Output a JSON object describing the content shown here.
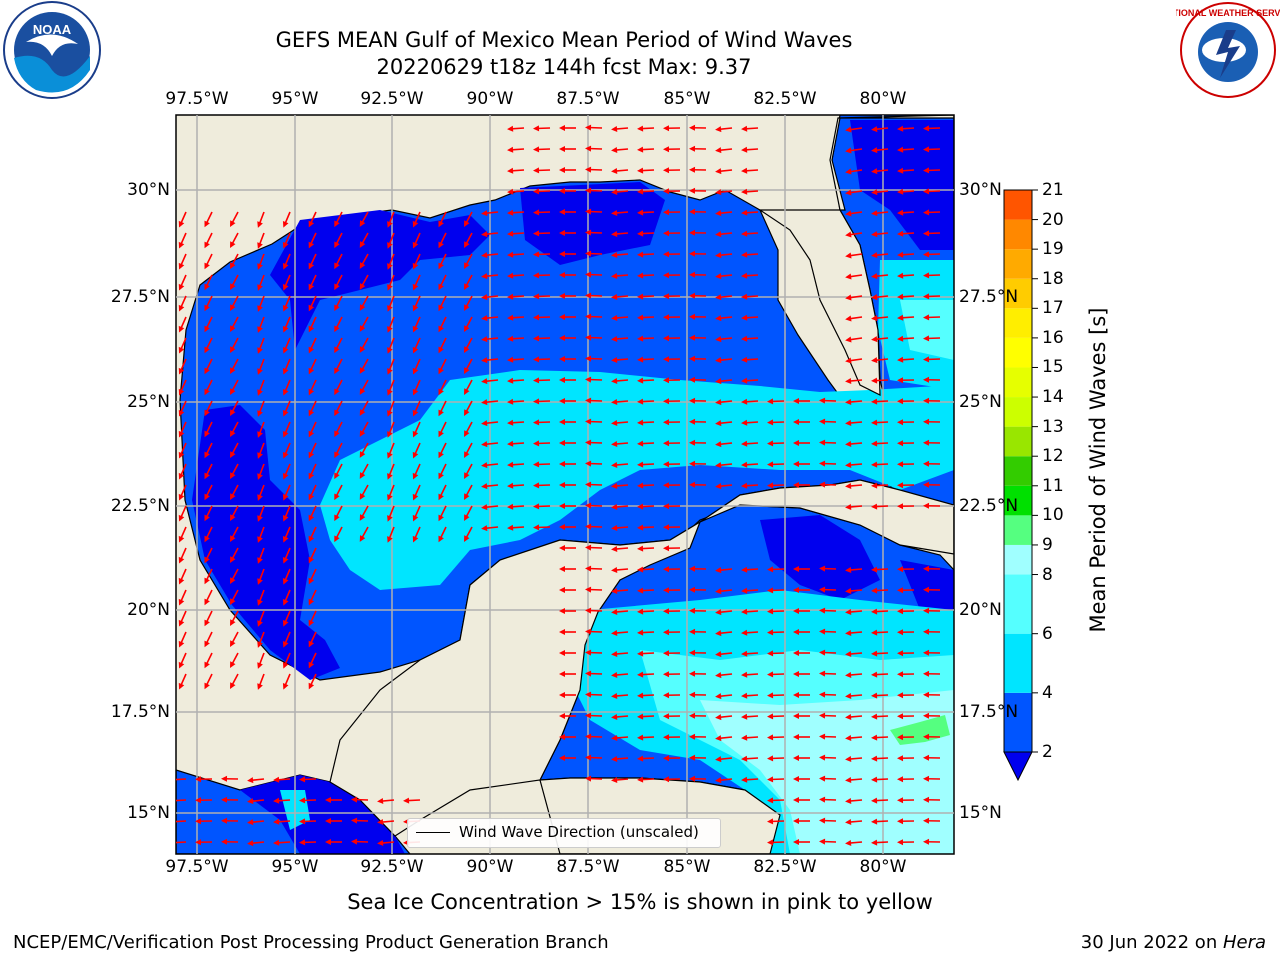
{
  "title": {
    "line1": "GEFS MEAN Gulf of Mexico Mean Period of Wind Waves",
    "line2": "20220629 t18z 144h fcst   Max: 9.37"
  },
  "map": {
    "lon_labels": [
      "97.5°W",
      "95°W",
      "92.5°W",
      "90°W",
      "87.5°W",
      "85°W",
      "82.5°W",
      "80°W"
    ],
    "lat_labels": [
      "30°N",
      "27.5°N",
      "25°N",
      "22.5°N",
      "20°N",
      "17.5°N",
      "15°N"
    ],
    "legend_label": "Wind Wave Direction (unscaled)",
    "arrow_color": "#ff0000",
    "land_color": "#efecdc"
  },
  "colorbar": {
    "label": "Mean Period of Wind Waves [s]",
    "ticks": [
      "2",
      "4",
      "6",
      "8",
      "9",
      "10",
      "11",
      "12",
      "13",
      "14",
      "15",
      "16",
      "17",
      "18",
      "19",
      "20",
      "21"
    ],
    "colors": [
      "#0055ff",
      "#00e5ff",
      "#55ffff",
      "#a0ffff",
      "#55ff80",
      "#00e000",
      "#33cc00",
      "#99e600",
      "#ccff00",
      "#e6ff00",
      "#ffff00",
      "#ffee00",
      "#ffcc00",
      "#ffaa00",
      "#ff8800",
      "#ff5500",
      "#ff2200",
      "#ff0000"
    ],
    "extend_color": "#0000ee"
  },
  "caption": "Sea Ice Concentration > 15% is shown in pink to yellow",
  "footer": {
    "left": "NCEP/EMC/Verification Post Processing Product Generation Branch",
    "right_date": "30 Jun 2022 on ",
    "right_host": "Hera"
  },
  "logos": {
    "noaa_text": "NOAA",
    "nws_text": "NATIONAL WEATHER SERVICE"
  }
}
